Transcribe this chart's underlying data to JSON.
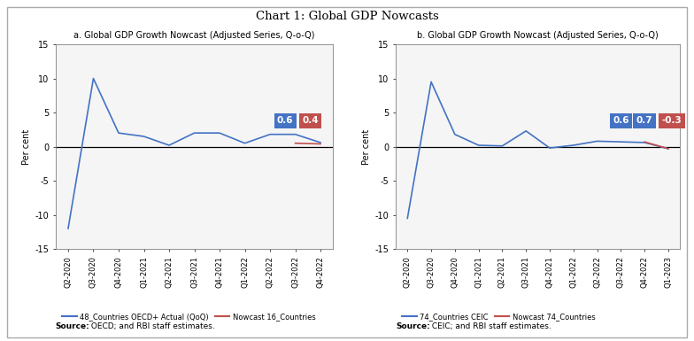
{
  "title": "Chart 1: Global GDP Nowcasts",
  "left_subtitle": "a. Global GDP Growth Nowcast (Adjusted Series, Q-o-Q)",
  "right_subtitle": "b. Global GDP Growth Nowcast (Adjusted Series, Q-o-Q)",
  "left_xlabel_ticks": [
    "Q2-2020",
    "Q3-2020",
    "Q4-2020",
    "Q1-2021",
    "Q2-2021",
    "Q3-2021",
    "Q4-2021",
    "Q1-2022",
    "Q2-2022",
    "Q3-2022",
    "Q4-2022"
  ],
  "right_xlabel_ticks": [
    "Q2-2020",
    "Q3-2020",
    "Q4-2020",
    "Q1-2021",
    "Q2-2021",
    "Q3-2021",
    "Q4-2021",
    "Q1-2022",
    "Q2-2022",
    "Q3-2022",
    "Q4-2022",
    "Q1-2023"
  ],
  "left_blue": [
    -12.0,
    10.0,
    2.0,
    1.5,
    0.2,
    2.0,
    2.0,
    0.5,
    1.8,
    1.8,
    0.6
  ],
  "left_red": [
    null,
    null,
    null,
    null,
    null,
    null,
    null,
    null,
    null,
    0.5,
    0.4
  ],
  "right_blue": [
    -10.5,
    9.5,
    1.8,
    0.2,
    0.1,
    2.3,
    -0.2,
    0.2,
    0.8,
    0.7,
    0.6,
    -0.3
  ],
  "right_red": [
    null,
    null,
    null,
    null,
    null,
    null,
    null,
    null,
    null,
    null,
    0.7,
    -0.3
  ],
  "left_annot_blue_val": "0.6",
  "left_annot_red_val": "0.4",
  "right_annot_blue_val1": "0.6",
  "right_annot_blue_val2": "0.7",
  "right_annot_red_val": "-0.3",
  "ylabel": "Per cent",
  "ylim": [
    -15,
    15
  ],
  "yticks": [
    -15,
    -10,
    -5,
    0,
    5,
    10,
    15
  ],
  "blue_color": "#4472C4",
  "red_color": "#C0504D",
  "left_source_bold": "Source:",
  "left_source_normal": " OECD; and RBI staff estimates.",
  "right_source_bold": "Source:",
  "right_source_normal": " CEIC; and RBI staff estimates.",
  "left_legend1": "48_Countries OECD+ Actual (QoQ)",
  "left_legend2": "Nowcast 16_Countries",
  "right_legend1": "74_Countries CEIC",
  "right_legend2": "Nowcast 74_Countries",
  "bg_color": "#f5f5f5"
}
